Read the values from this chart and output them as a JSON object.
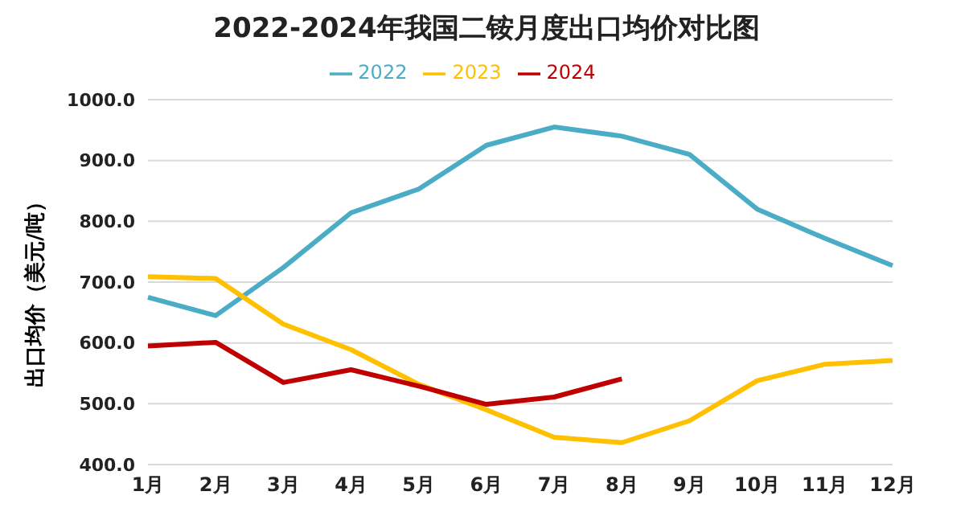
{
  "chart_data": {
    "type": "line",
    "title": "2022-2024年我国二铵月度出口均价对比图",
    "ylabel": "出口均价（美元/吨）",
    "categories": [
      "1月",
      "2月",
      "3月",
      "4月",
      "5月",
      "6月",
      "7月",
      "8月",
      "9月",
      "10月",
      "11月",
      "12月"
    ],
    "series": [
      {
        "name": "2022",
        "color": "#4bacc6",
        "values": [
          675,
          645,
          724,
          814,
          853,
          925,
          955,
          940,
          910,
          820,
          772,
          727
        ]
      },
      {
        "name": "2023",
        "color": "#ffc000",
        "values": [
          709,
          706,
          631,
          589,
          532,
          490,
          445,
          436,
          472,
          538,
          565,
          571
        ]
      },
      {
        "name": "2024",
        "color": "#c00000",
        "values": [
          595,
          601,
          535,
          556,
          529,
          499,
          511,
          541,
          null,
          null,
          null,
          null
        ]
      }
    ],
    "ylim": [
      400,
      1000
    ],
    "yticks": [
      {
        "value": 400,
        "label": "400.0"
      },
      {
        "value": 500,
        "label": "500.0"
      },
      {
        "value": 600,
        "label": "600.0"
      },
      {
        "value": 700,
        "label": "700.0"
      },
      {
        "value": 800,
        "label": "800.0"
      },
      {
        "value": 900,
        "label": "900.0"
      },
      {
        "value": 1000,
        "label": "1000.0"
      }
    ],
    "grid": "y",
    "legend": "top",
    "marker": "none",
    "line_style": "solid"
  }
}
